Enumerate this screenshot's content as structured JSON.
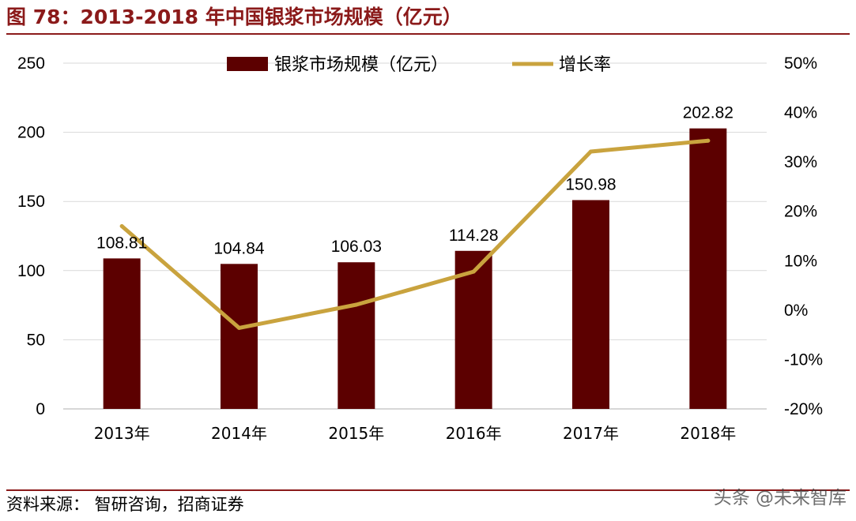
{
  "figure": {
    "title": "图 78：2013-2018 年中国银浆市场规模（亿元）",
    "source": "资料来源：  智研咨询，招商证券",
    "watermark": "头条 @未来智库"
  },
  "chart_data": {
    "type": "bar",
    "categories": [
      "2013年",
      "2014年",
      "2015年",
      "2016年",
      "2017年",
      "2018年"
    ],
    "series": [
      {
        "name": "银浆市场规模（亿元）",
        "type": "bar",
        "axis": "left",
        "color": "#5c0000",
        "values": [
          108.81,
          104.84,
          106.03,
          114.28,
          150.98,
          202.82
        ],
        "labels": [
          "108.81",
          "104.84",
          "106.03",
          "114.28",
          "150.98",
          "202.82"
        ]
      },
      {
        "name": "增长率",
        "type": "line",
        "axis": "right",
        "color": "#c9a33e",
        "values": [
          17,
          -3.6,
          1.1,
          7.8,
          32.1,
          34.3
        ]
      }
    ],
    "y_left": {
      "min": 0,
      "max": 250,
      "step": 50,
      "ticks": [
        "0",
        "50",
        "100",
        "150",
        "200",
        "250"
      ]
    },
    "y_right": {
      "min": -20,
      "max": 50,
      "step": 10,
      "ticks": [
        "-20%",
        "-10%",
        "0%",
        "10%",
        "20%",
        "30%",
        "40%",
        "50%"
      ]
    },
    "grid": true,
    "legend": "top-center"
  }
}
